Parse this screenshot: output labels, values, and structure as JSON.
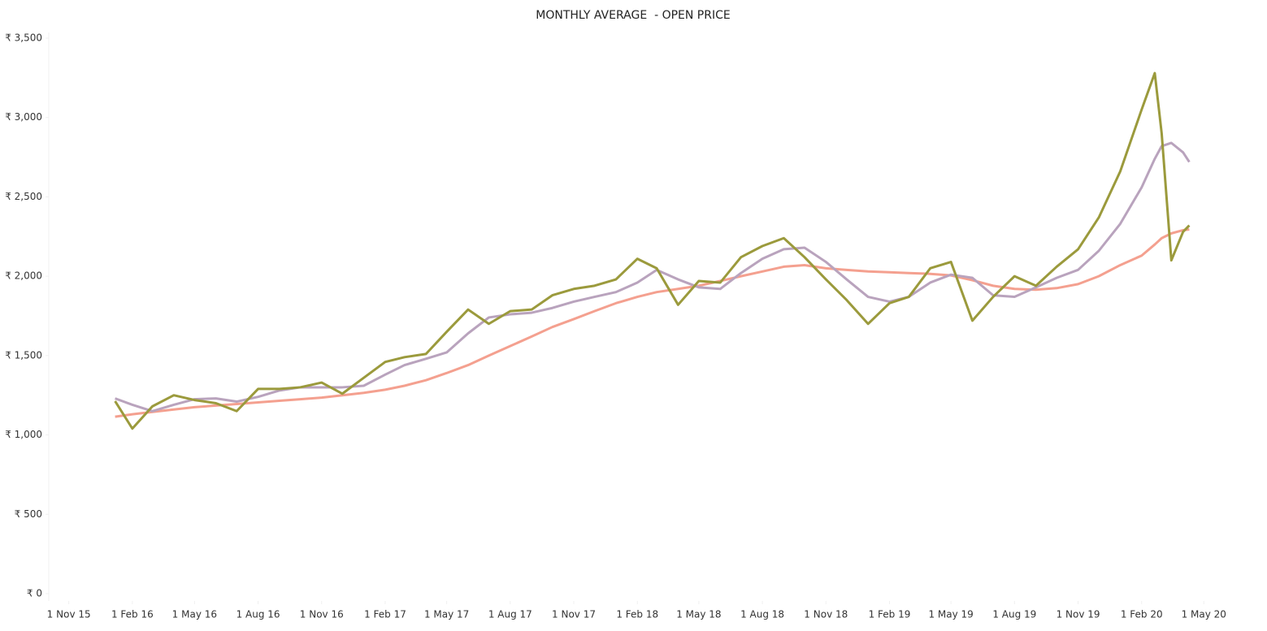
{
  "chart_data": {
    "type": "line",
    "title": "MONTHLY AVERAGE  - OPEN PRICE",
    "x": [
      "2016-01-07",
      "2016-02-01",
      "2016-03-01",
      "2016-04-01",
      "2016-05-01",
      "2016-06-01",
      "2016-07-01",
      "2016-08-01",
      "2016-09-01",
      "2016-10-01",
      "2016-11-01",
      "2016-12-01",
      "2017-01-01",
      "2017-02-01",
      "2017-03-01",
      "2017-04-01",
      "2017-05-01",
      "2017-06-01",
      "2017-07-01",
      "2017-08-01",
      "2017-09-01",
      "2017-10-01",
      "2017-11-01",
      "2017-12-01",
      "2018-01-01",
      "2018-02-01",
      "2018-03-01",
      "2018-04-01",
      "2018-05-01",
      "2018-06-01",
      "2018-07-01",
      "2018-08-01",
      "2018-09-01",
      "2018-10-01",
      "2018-11-01",
      "2018-12-01",
      "2019-01-01",
      "2019-02-01",
      "2019-03-01",
      "2019-04-01",
      "2019-05-01",
      "2019-06-01",
      "2019-07-01",
      "2019-08-01",
      "2019-09-01",
      "2019-10-01",
      "2019-11-01",
      "2019-12-01",
      "2020-01-01",
      "2020-02-01",
      "2020-02-20",
      "2020-03-01",
      "2020-03-15",
      "2020-04-01",
      "2020-04-10"
    ],
    "series": [
      {
        "color": "#9b9a3c",
        "values": [
          1213,
          1040,
          1180,
          1250,
          1220,
          1200,
          1150,
          1290,
          1290,
          1300,
          1330,
          1260,
          1360,
          1460,
          1490,
          1510,
          1650,
          1790,
          1700,
          1780,
          1790,
          1880,
          1920,
          1940,
          1980,
          2110,
          2050,
          1820,
          1970,
          1960,
          2120,
          2190,
          2240,
          2120,
          1980,
          1850,
          1700,
          1830,
          1870,
          2050,
          2090,
          1720,
          1870,
          2000,
          1940,
          2060,
          2170,
          2370,
          2660,
          3050,
          3280,
          2900,
          2100,
          2280,
          2320
        ]
      },
      {
        "color": "#b9a3bd",
        "values": [
          1230,
          1190,
          1150,
          1190,
          1225,
          1230,
          1210,
          1240,
          1280,
          1300,
          1300,
          1300,
          1310,
          1380,
          1440,
          1480,
          1520,
          1640,
          1740,
          1760,
          1770,
          1800,
          1840,
          1870,
          1900,
          1960,
          2040,
          1980,
          1930,
          1920,
          2020,
          2110,
          2170,
          2180,
          2090,
          1980,
          1870,
          1840,
          1870,
          1960,
          2010,
          1990,
          1880,
          1870,
          1930,
          1990,
          2040,
          2160,
          2330,
          2560,
          2740,
          2820,
          2840,
          2780,
          2720
        ]
      },
      {
        "color": "#f4a08f",
        "values": [
          1115,
          1130,
          1145,
          1160,
          1175,
          1185,
          1195,
          1205,
          1215,
          1225,
          1235,
          1250,
          1265,
          1285,
          1310,
          1345,
          1390,
          1440,
          1500,
          1560,
          1620,
          1680,
          1730,
          1780,
          1830,
          1870,
          1900,
          1920,
          1940,
          1970,
          2000,
          2030,
          2060,
          2070,
          2050,
          2040,
          2030,
          2025,
          2020,
          2015,
          2005,
          1975,
          1940,
          1920,
          1915,
          1925,
          1950,
          2000,
          2070,
          2130,
          2200,
          2240,
          2270,
          2290,
          2295
        ]
      }
    ],
    "xlim": [
      "2015-10-03",
      "2020-07-15"
    ],
    "xticks": [
      {
        "value": "2015-11-01",
        "label": "1 Nov 15"
      },
      {
        "value": "2016-02-01",
        "label": "1 Feb 16"
      },
      {
        "value": "2016-05-01",
        "label": "1 May 16"
      },
      {
        "value": "2016-08-01",
        "label": "1 Aug 16"
      },
      {
        "value": "2016-11-01",
        "label": "1 Nov 16"
      },
      {
        "value": "2017-02-01",
        "label": "1 Feb 17"
      },
      {
        "value": "2017-05-01",
        "label": "1 May 17"
      },
      {
        "value": "2017-08-01",
        "label": "1 Aug 17"
      },
      {
        "value": "2017-11-01",
        "label": "1 Nov 17"
      },
      {
        "value": "2018-02-01",
        "label": "1 Feb 18"
      },
      {
        "value": "2018-05-01",
        "label": "1 May 18"
      },
      {
        "value": "2018-08-01",
        "label": "1 Aug 18"
      },
      {
        "value": "2018-11-01",
        "label": "1 Nov 18"
      },
      {
        "value": "2019-02-01",
        "label": "1 Feb 19"
      },
      {
        "value": "2019-05-01",
        "label": "1 May 19"
      },
      {
        "value": "2019-08-01",
        "label": "1 Aug 19"
      },
      {
        "value": "2019-11-01",
        "label": "1 Nov 19"
      },
      {
        "value": "2020-02-01",
        "label": "1 Feb 20"
      },
      {
        "value": "2020-05-01",
        "label": "1 May 20"
      }
    ],
    "ylim": [
      0,
      3500
    ],
    "yticks": [
      {
        "value": 0,
        "label": "₹ 0"
      },
      {
        "value": 500,
        "label": "₹ 500"
      },
      {
        "value": 1000,
        "label": "₹ 1,000"
      },
      {
        "value": 1500,
        "label": "₹ 1,500"
      },
      {
        "value": 2000,
        "label": "₹ 2,000"
      },
      {
        "value": 2500,
        "label": "₹ 2,500"
      },
      {
        "value": 3000,
        "label": "₹ 3,000"
      },
      {
        "value": 3500,
        "label": "₹ 3,500"
      }
    ],
    "grid": false
  }
}
